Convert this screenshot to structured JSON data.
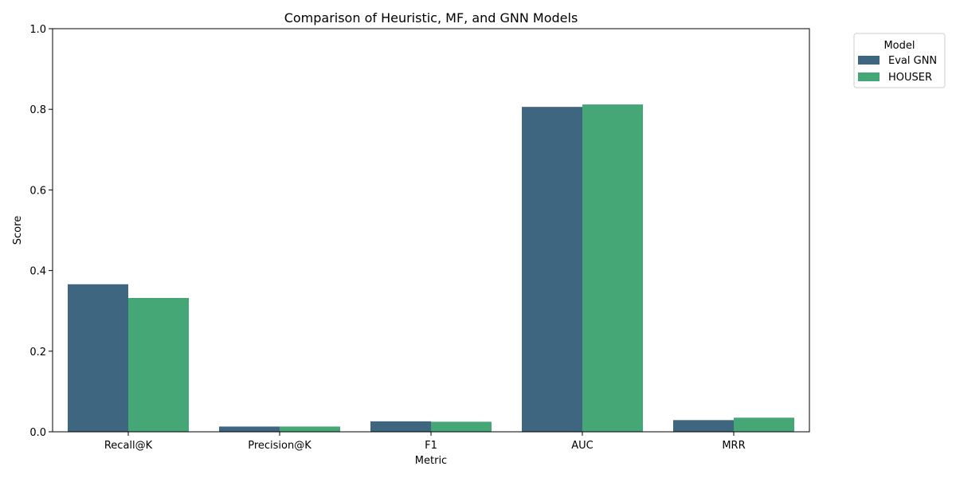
{
  "chart_data": {
    "type": "bar",
    "title": "Comparison of Heuristic, MF, and GNN Models",
    "xlabel": "Metric",
    "ylabel": "Score",
    "ylim": [
      0,
      1.0
    ],
    "yticks": [
      "0.0",
      "0.2",
      "0.4",
      "0.6",
      "0.8",
      "1.0"
    ],
    "categories": [
      "Recall@K",
      "Precision@K",
      "F1",
      "AUC",
      "MRR"
    ],
    "legend_title": "Model",
    "legend_position": "outside-top-right",
    "grid": false,
    "series": [
      {
        "name": "Eval GNN",
        "color": "#3e6680",
        "values": [
          0.366,
          0.013,
          0.026,
          0.806,
          0.029
        ]
      },
      {
        "name": "HOUSER",
        "color": "#45a776",
        "values": [
          0.332,
          0.013,
          0.025,
          0.812,
          0.035
        ]
      }
    ]
  }
}
